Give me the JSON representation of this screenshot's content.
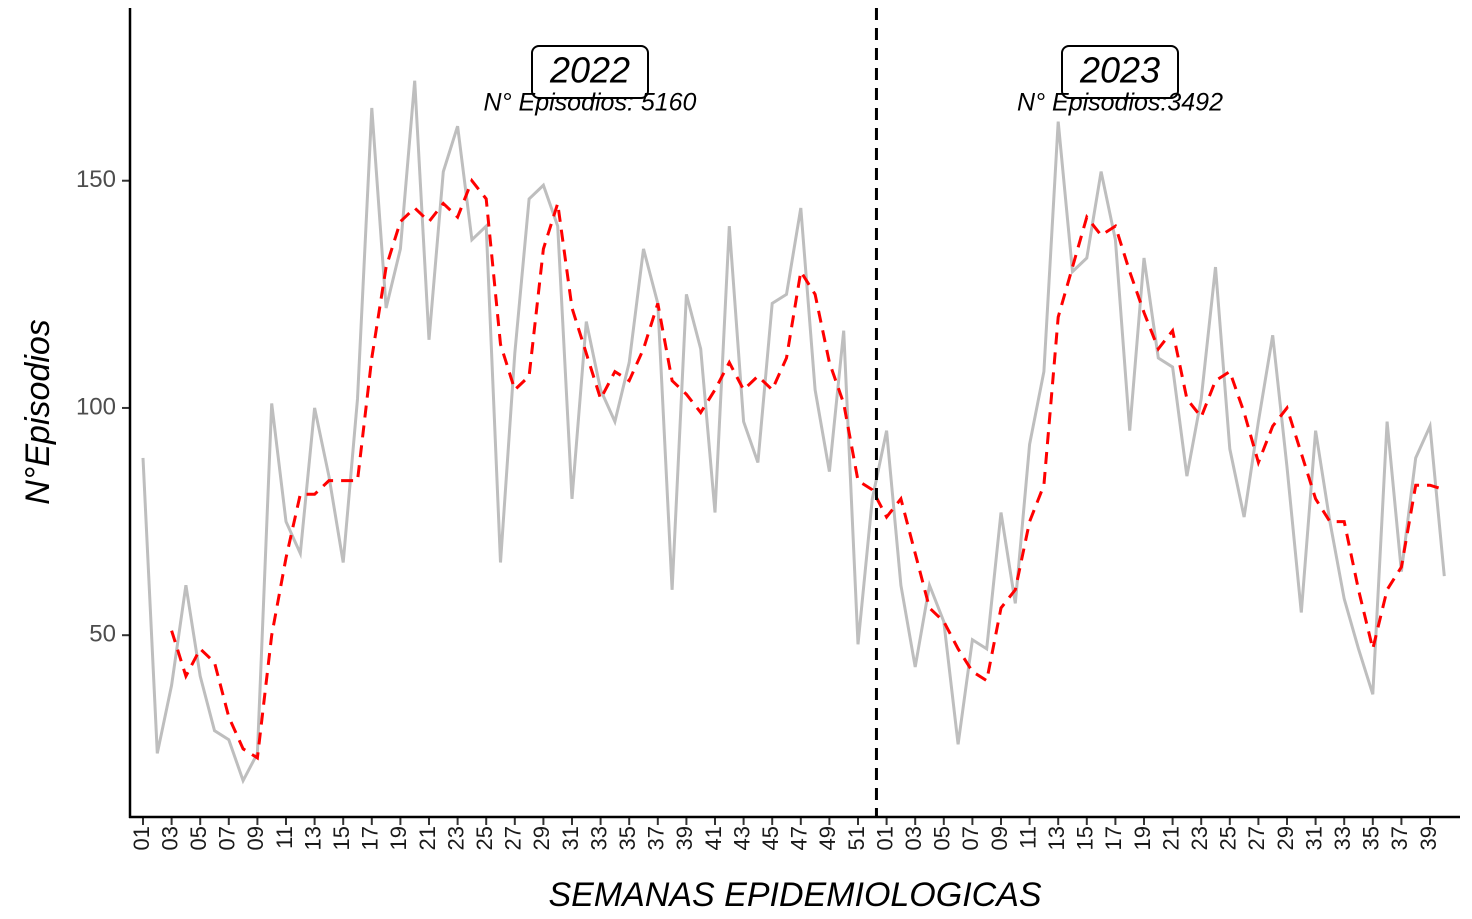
{
  "chart_data": {
    "type": "line",
    "x_label": "SEMANAS EPIDEMIOLOGICAS",
    "y_label": "N°Episodios",
    "categories": [
      "01",
      null,
      "03",
      null,
      "05",
      null,
      "07",
      null,
      "09",
      null,
      "11",
      null,
      "13",
      null,
      "15",
      null,
      "17",
      null,
      "19",
      null,
      "21",
      null,
      "23",
      null,
      "25",
      null,
      "27",
      null,
      "29",
      null,
      "31",
      null,
      "33",
      null,
      "35",
      null,
      "37",
      null,
      "39",
      null,
      "41",
      null,
      "43",
      null,
      "45",
      null,
      "47",
      null,
      "49",
      null,
      "51",
      null,
      "01",
      null,
      "03",
      null,
      "05",
      null,
      "07",
      null,
      "09",
      null,
      "11",
      null,
      "13",
      null,
      "15",
      null,
      "17",
      null,
      "19",
      null,
      "21",
      null,
      "23",
      null,
      "25",
      null,
      "27",
      null,
      "29",
      null,
      "31",
      null,
      "33",
      null,
      "35",
      null,
      "37",
      null,
      "39",
      null
    ],
    "series": [
      {
        "color": "#bebebe",
        "dashed": false,
        "values": [
          89,
          24,
          39,
          61,
          41,
          29,
          27,
          18,
          24,
          101,
          75,
          68,
          100,
          85,
          66,
          102,
          166,
          122,
          135,
          172,
          115,
          152,
          162,
          137,
          140,
          66,
          112,
          146,
          149,
          140,
          80,
          119,
          104,
          97,
          110,
          135,
          123,
          60,
          125,
          113,
          77,
          140,
          97,
          88,
          123,
          125,
          144,
          104,
          86,
          117,
          48,
          80,
          95,
          61,
          43,
          61,
          53,
          26,
          49,
          47,
          77,
          57,
          92,
          108,
          163,
          130,
          133,
          152,
          137,
          95,
          133,
          111,
          109,
          85,
          102,
          131,
          91,
          76,
          97,
          116,
          87,
          55,
          95,
          75,
          58,
          47,
          37,
          97,
          64,
          89,
          96,
          63
        ]
      },
      {
        "color": "#ff0000",
        "dashed": true,
        "values": [
          null,
          null,
          51,
          41,
          47,
          44,
          32,
          25,
          23,
          50,
          67,
          81,
          81,
          84,
          84,
          84,
          111,
          131,
          141,
          144,
          141,
          145,
          142,
          150,
          146,
          114,
          104,
          107,
          135,
          145,
          122,
          112,
          102,
          108,
          106,
          113,
          123,
          106,
          103,
          99,
          104,
          110,
          104,
          107,
          104,
          111,
          130,
          125,
          110,
          101,
          84,
          82,
          76,
          80,
          68,
          56,
          53,
          47,
          42,
          40,
          56,
          60,
          75,
          83,
          120,
          131,
          142,
          138,
          140,
          130,
          121,
          113,
          117,
          102,
          98,
          106,
          108,
          99,
          88,
          96,
          100,
          90,
          80,
          75,
          75,
          60,
          47,
          60,
          65,
          83,
          83,
          82
        ]
      }
    ],
    "annotations": [
      {
        "label": "2022",
        "text": "N° Episodios: 5160"
      },
      {
        "label": "2023",
        "text": "N° Episodios:3492"
      }
    ],
    "ylim": [
      10,
      188
    ],
    "yticks": [
      50,
      100,
      150
    ],
    "grid": false
  }
}
